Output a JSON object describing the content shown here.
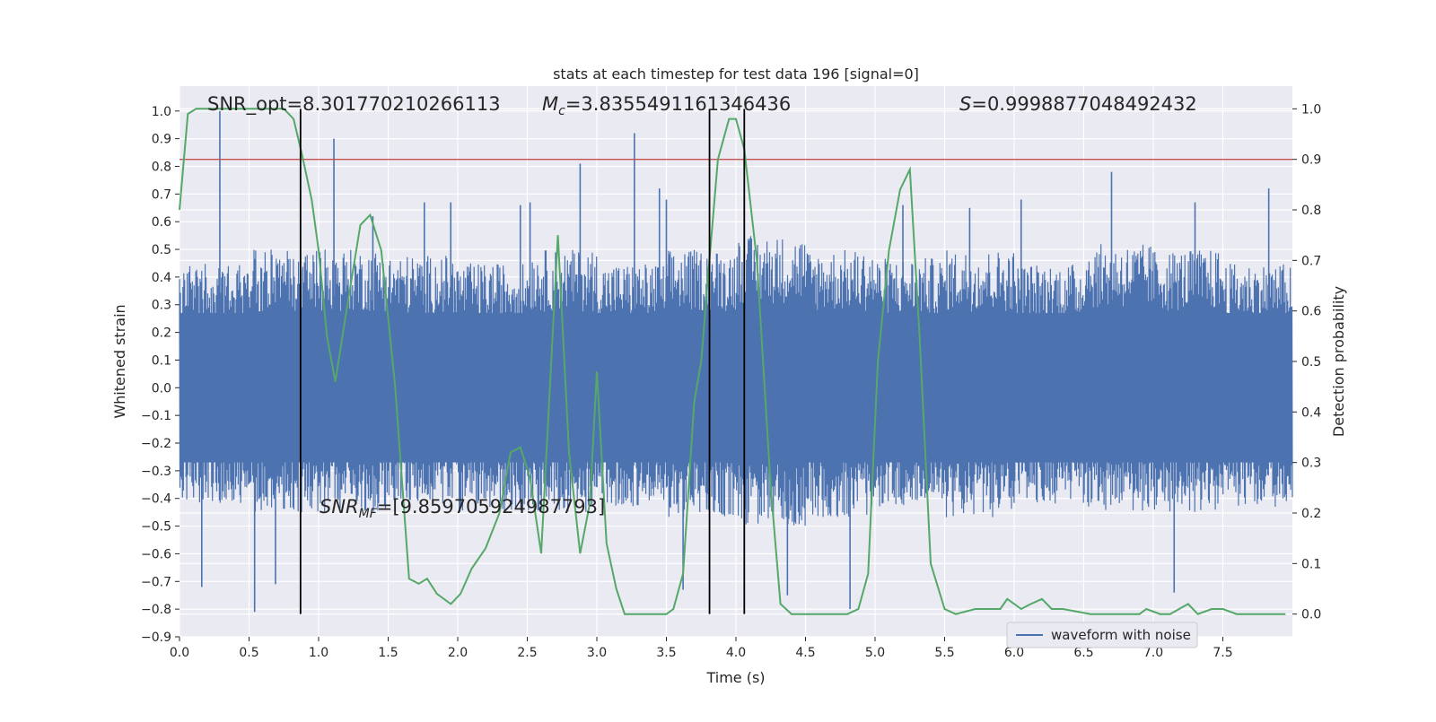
{
  "chart_data": {
    "type": "line",
    "title": "stats at each timestep for test data 196 [signal=0]",
    "xlabel": "Time (s)",
    "ylabel": "Whitened strain",
    "y2label": "Detection probability",
    "xlim": [
      0.0,
      8.0
    ],
    "ylim": [
      -0.9,
      1.09
    ],
    "y2lim": [
      -0.045,
      1.045
    ],
    "x_ticks": [
      0.0,
      0.5,
      1.0,
      1.5,
      2.0,
      2.5,
      3.0,
      3.5,
      4.0,
      4.5,
      5.0,
      5.5,
      6.0,
      6.5,
      7.0,
      7.5
    ],
    "x_tick_labels": [
      "0.0",
      "0.5",
      "1.0",
      "1.5",
      "2.0",
      "2.5",
      "3.0",
      "3.5",
      "4.0",
      "4.5",
      "5.0",
      "5.5",
      "6.0",
      "6.5",
      "7.0",
      "7.5"
    ],
    "y_ticks": [
      -0.9,
      -0.8,
      -0.7,
      -0.6,
      -0.5,
      -0.4,
      -0.3,
      -0.2,
      -0.1,
      0.0,
      0.1,
      0.2,
      0.3,
      0.4,
      0.5,
      0.6,
      0.7,
      0.8,
      0.9,
      1.0
    ],
    "y_tick_labels": [
      "−0.9",
      "−0.8",
      "−0.7",
      "−0.6",
      "−0.5",
      "−0.4",
      "−0.3",
      "−0.2",
      "−0.1",
      "0.0",
      "0.1",
      "0.2",
      "0.3",
      "0.4",
      "0.5",
      "0.6",
      "0.7",
      "0.8",
      "0.9",
      "1.0"
    ],
    "y2_ticks": [
      0.0,
      0.1,
      0.2,
      0.3,
      0.4,
      0.5,
      0.6,
      0.7,
      0.8,
      0.9,
      1.0
    ],
    "y2_tick_labels": [
      "0.0",
      "0.1",
      "0.2",
      "0.3",
      "0.4",
      "0.5",
      "0.6",
      "0.7",
      "0.8",
      "0.9",
      "1.0"
    ],
    "grid": true,
    "legend": {
      "placement": "lower-right",
      "entries": [
        {
          "label": "waveform with noise",
          "color": "#4c72b0"
        }
      ]
    },
    "annotations": {
      "snr_opt": "SNR_opt=8.301770210266113",
      "mc_symbol": "M",
      "mc_sub": "c",
      "mc_value": "=3.8355491161346436",
      "s_symbol": "S",
      "s_value": "=0.9998877048492432",
      "snr_mf_symbol": "SNR",
      "snr_mf_sub": "MF",
      "snr_mf_value": "=[9.859705924987793]"
    },
    "threshold": {
      "y2": 0.9,
      "color": "#c44e52"
    },
    "vertical_lines": {
      "x": [
        0.87,
        3.81,
        4.06
      ],
      "color": "#000000"
    },
    "waveform": {
      "name": "waveform with noise",
      "color": "#4c72b0",
      "band_max": [
        0.45,
        0.5,
        0.5,
        0.48,
        0.45,
        0.5,
        0.45,
        0.5,
        0.55,
        0.5,
        0.47,
        0.5,
        0.45,
        0.52,
        0.5,
        0.45
      ],
      "band_min": [
        -0.42,
        -0.45,
        -0.45,
        -0.42,
        -0.45,
        -0.45,
        -0.43,
        -0.47,
        -0.5,
        -0.47,
        -0.43,
        -0.47,
        -0.42,
        -0.45,
        -0.45,
        -0.43
      ],
      "spikes": [
        [
          0.29,
          1.0
        ],
        [
          0.54,
          -0.81
        ],
        [
          1.11,
          0.9
        ],
        [
          1.76,
          0.67
        ],
        [
          2.88,
          0.81
        ],
        [
          3.27,
          0.92
        ],
        [
          3.45,
          0.72
        ],
        [
          3.5,
          0.68
        ],
        [
          4.37,
          -0.75
        ],
        [
          4.82,
          -0.8
        ],
        [
          5.68,
          0.65
        ],
        [
          6.05,
          0.68
        ],
        [
          6.7,
          0.78
        ],
        [
          7.15,
          -0.74
        ],
        [
          7.3,
          0.67
        ],
        [
          7.83,
          0.72
        ],
        [
          1.39,
          0.62
        ],
        [
          0.69,
          -0.71
        ],
        [
          0.16,
          -0.72
        ],
        [
          2.45,
          0.66
        ],
        [
          5.2,
          0.66
        ],
        [
          3.62,
          -0.73
        ],
        [
          2.52,
          0.67
        ],
        [
          1.95,
          0.67
        ]
      ]
    },
    "probability": {
      "name": "detection probability",
      "color": "#55a868",
      "x": [
        0.0,
        0.06,
        0.12,
        0.25,
        0.5,
        0.75,
        0.82,
        0.88,
        0.95,
        1.0,
        1.06,
        1.12,
        1.2,
        1.3,
        1.37,
        1.45,
        1.55,
        1.65,
        1.72,
        1.78,
        1.85,
        1.95,
        2.02,
        2.1,
        2.2,
        2.3,
        2.38,
        2.45,
        2.52,
        2.6,
        2.72,
        2.8,
        2.88,
        2.95,
        3.0,
        3.07,
        3.14,
        3.2,
        3.3,
        3.5,
        3.55,
        3.62,
        3.7,
        3.75,
        3.8,
        3.87,
        3.95,
        4.0,
        4.06,
        4.15,
        4.25,
        4.32,
        4.4,
        4.6,
        4.8,
        4.88,
        4.95,
        5.02,
        5.1,
        5.18,
        5.25,
        5.32,
        5.4,
        5.5,
        5.58,
        5.72,
        5.9,
        5.95,
        6.05,
        6.12,
        6.2,
        6.27,
        6.35,
        6.55,
        6.9,
        6.95,
        7.05,
        7.12,
        7.25,
        7.32,
        7.42,
        7.5,
        7.6,
        7.95
      ],
      "y": [
        0.8,
        0.99,
        1.0,
        1.0,
        1.0,
        1.0,
        0.98,
        0.91,
        0.82,
        0.72,
        0.55,
        0.46,
        0.6,
        0.77,
        0.79,
        0.72,
        0.45,
        0.07,
        0.06,
        0.07,
        0.04,
        0.02,
        0.04,
        0.09,
        0.13,
        0.2,
        0.32,
        0.33,
        0.27,
        0.12,
        0.75,
        0.32,
        0.12,
        0.22,
        0.48,
        0.14,
        0.05,
        0.0,
        0.0,
        0.0,
        0.01,
        0.08,
        0.42,
        0.5,
        0.67,
        0.9,
        0.98,
        0.98,
        0.92,
        0.7,
        0.25,
        0.02,
        0.0,
        0.0,
        0.0,
        0.01,
        0.08,
        0.5,
        0.72,
        0.84,
        0.88,
        0.55,
        0.1,
        0.01,
        0.0,
        0.01,
        0.01,
        0.03,
        0.01,
        0.02,
        0.03,
        0.01,
        0.01,
        0.0,
        0.0,
        0.01,
        0.0,
        0.0,
        0.02,
        0.0,
        0.01,
        0.01,
        0.0,
        0.0
      ]
    }
  }
}
